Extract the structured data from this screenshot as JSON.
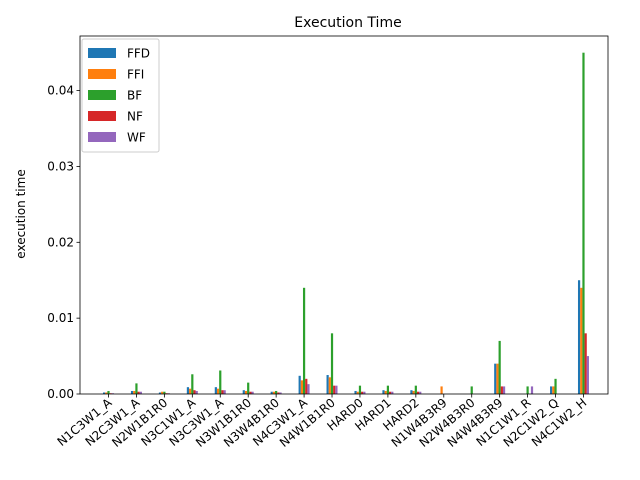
{
  "chart_data": {
    "type": "bar",
    "title": "Execution Time",
    "xlabel": "",
    "ylabel": "execution time",
    "ylim": [
      0,
      0.0472
    ],
    "yticks": [
      0.0,
      0.01,
      0.02,
      0.03,
      0.04
    ],
    "ytick_labels": [
      "0.00",
      "0.01",
      "0.02",
      "0.03",
      "0.04"
    ],
    "legend_position": "top-left",
    "categories": [
      "N1C3W1_A",
      "N2C3W1_A",
      "N2W1B1R0",
      "N3C1W1_A",
      "N3C3W1_A",
      "N3W1B1R0",
      "N3W4B1R0",
      "N4C3W1_A",
      "N4W1B1R0",
      "HARD0",
      "HARD1",
      "HARD2",
      "N1W4B3R9",
      "N2W4B3R0",
      "N4W4B3R9",
      "N1C1W1_R",
      "N2C1W2_Q",
      "N4C1W2_H"
    ],
    "series": [
      {
        "name": "FFD",
        "color": "#1f77b4",
        "values": [
          0.0002,
          0.0004,
          0.0002,
          0.0009,
          0.0009,
          0.0005,
          0.0003,
          0.0024,
          0.0025,
          0.0004,
          0.0005,
          0.0005,
          0.0,
          0.0,
          0.004,
          0.0,
          0.001,
          0.015
        ]
      },
      {
        "name": "FFI",
        "color": "#ff7f0e",
        "values": [
          0.0002,
          0.0004,
          0.0003,
          0.0007,
          0.0007,
          0.0004,
          0.0003,
          0.0018,
          0.0022,
          0.0003,
          0.0004,
          0.0004,
          0.001,
          0.0,
          0.004,
          0.0,
          0.001,
          0.014
        ]
      },
      {
        "name": "BF",
        "color": "#2ca02c",
        "values": [
          0.0004,
          0.0014,
          0.0003,
          0.0026,
          0.0031,
          0.0015,
          0.0004,
          0.014,
          0.008,
          0.0011,
          0.0011,
          0.0011,
          0.0,
          0.001,
          0.007,
          0.001,
          0.002,
          0.045
        ]
      },
      {
        "name": "NF",
        "color": "#d62728",
        "values": [
          0.0001,
          0.0003,
          0.0001,
          0.0005,
          0.0005,
          0.0003,
          0.0002,
          0.002,
          0.0011,
          0.0003,
          0.0003,
          0.0003,
          0.0,
          0.0,
          0.001,
          0.0,
          0.0,
          0.008
        ]
      },
      {
        "name": "WF",
        "color": "#9467bd",
        "values": [
          0.0001,
          0.0003,
          0.0001,
          0.0004,
          0.0005,
          0.0003,
          0.0002,
          0.0013,
          0.0011,
          0.0003,
          0.0003,
          0.0003,
          0.0,
          0.0,
          0.001,
          0.001,
          0.0,
          0.005
        ]
      }
    ]
  }
}
